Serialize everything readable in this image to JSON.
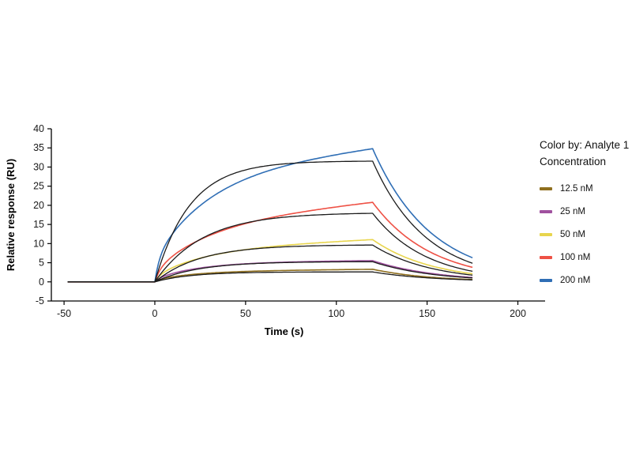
{
  "chart_data": {
    "type": "line",
    "title": "",
    "xlabel": "Time (s)",
    "ylabel": "Relative response (RU)",
    "xlim": [
      -57,
      215
    ],
    "ylim": [
      -5,
      40
    ],
    "x_ticks": [
      -50,
      0,
      50,
      100,
      150,
      200
    ],
    "y_ticks": [
      -5,
      0,
      5,
      10,
      15,
      20,
      25,
      30,
      35,
      40
    ],
    "grid": false,
    "legend": {
      "title": "Color by: Analyte 1 Concentration",
      "position": "right"
    },
    "fit_color": "#1b1b1b",
    "phases": {
      "baseline_start_s": -48,
      "association_start_s": 0,
      "dissociation_start_s": 120,
      "end_s": 175
    },
    "series": [
      {
        "name": "12.5 nM",
        "color": "#8f6f1f",
        "response_at_120s": 3.3,
        "response_at_175s": 0.6,
        "model": {
          "A1": 2.2,
          "tau1": 22,
          "A2": 0.5,
          "tau2": 3,
          "drift": 0.005,
          "kd": 0.031
        },
        "fit": {
          "Rmax": 2.6,
          "kobs": 0.05,
          "kd": 0.03
        }
      },
      {
        "name": "25 nM",
        "color": "#a0519f",
        "response_at_120s": 5.5,
        "response_at_175s": 1.2,
        "model": {
          "A1": 4.3,
          "tau1": 25,
          "A2": 0.8,
          "tau2": 3,
          "drift": 0.004,
          "kd": 0.0286
        },
        "fit": {
          "Rmax": 5.3,
          "kobs": 0.042,
          "kd": 0.03
        }
      },
      {
        "name": "50 nM",
        "color": "#e8d54d",
        "response_at_120s": 11.0,
        "response_at_175s": 2.1,
        "model": {
          "A1": 7.0,
          "tau1": 28,
          "A2": 1.5,
          "tau2": 3,
          "drift": 0.022,
          "kd": 0.0301
        },
        "fit": {
          "Rmax": 9.7,
          "kobs": 0.04,
          "kd": 0.031
        }
      },
      {
        "name": "100 nM",
        "color": "#ee5145",
        "response_at_120s": 20.8,
        "response_at_175s": 3.8,
        "model": {
          "A1": 12.0,
          "tau1": 30,
          "A2": 3.0,
          "tau2": 3,
          "drift": 0.05,
          "kd": 0.0309
        },
        "fit": {
          "Rmax": 18.1,
          "kobs": 0.038,
          "kd": 0.034
        }
      },
      {
        "name": "200 nM",
        "color": "#2f6eb5",
        "response_at_120s": 34.8,
        "response_at_175s": 6.3,
        "model": {
          "A1": 22.0,
          "tau1": 30,
          "A2": 6.0,
          "tau2": 2.5,
          "drift": 0.06,
          "kd": 0.0311
        },
        "fit": {
          "Rmax": 31.6,
          "kobs": 0.052,
          "kd": 0.034
        }
      }
    ]
  }
}
